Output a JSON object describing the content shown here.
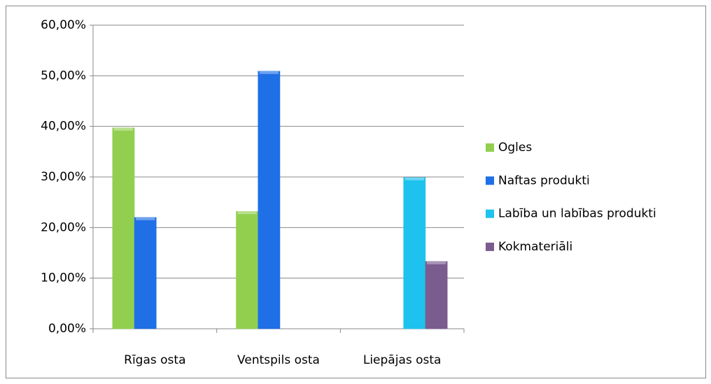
{
  "chart_data": {
    "type": "bar",
    "categories": [
      "Rīgas osta",
      "Ventspils osta",
      "Liepājas osta"
    ],
    "series": [
      {
        "name": "Ogles",
        "color": "#92cf4f",
        "values": [
          39.7,
          23.2,
          null
        ]
      },
      {
        "name": "Naftas produkti",
        "color": "#1f6fe6",
        "values": [
          22.0,
          50.9,
          null
        ]
      },
      {
        "name": "Labība un labības produkti",
        "color": "#1ec2ee",
        "values": [
          null,
          null,
          29.9
        ]
      },
      {
        "name": "Kokmateriāli",
        "color": "#7b5c8f",
        "values": [
          null,
          null,
          13.3
        ]
      }
    ],
    "ylim": [
      0,
      60
    ],
    "yticks": [
      {
        "value": 0,
        "label": "0,00%"
      },
      {
        "value": 10,
        "label": "10,00%"
      },
      {
        "value": 20,
        "label": "20,00%"
      },
      {
        "value": 30,
        "label": "30,00%"
      },
      {
        "value": 40,
        "label": "40,00%"
      },
      {
        "value": 50,
        "label": "50,00%"
      },
      {
        "value": 60,
        "label": "60,00%"
      }
    ],
    "grid": true,
    "legend": "right"
  }
}
